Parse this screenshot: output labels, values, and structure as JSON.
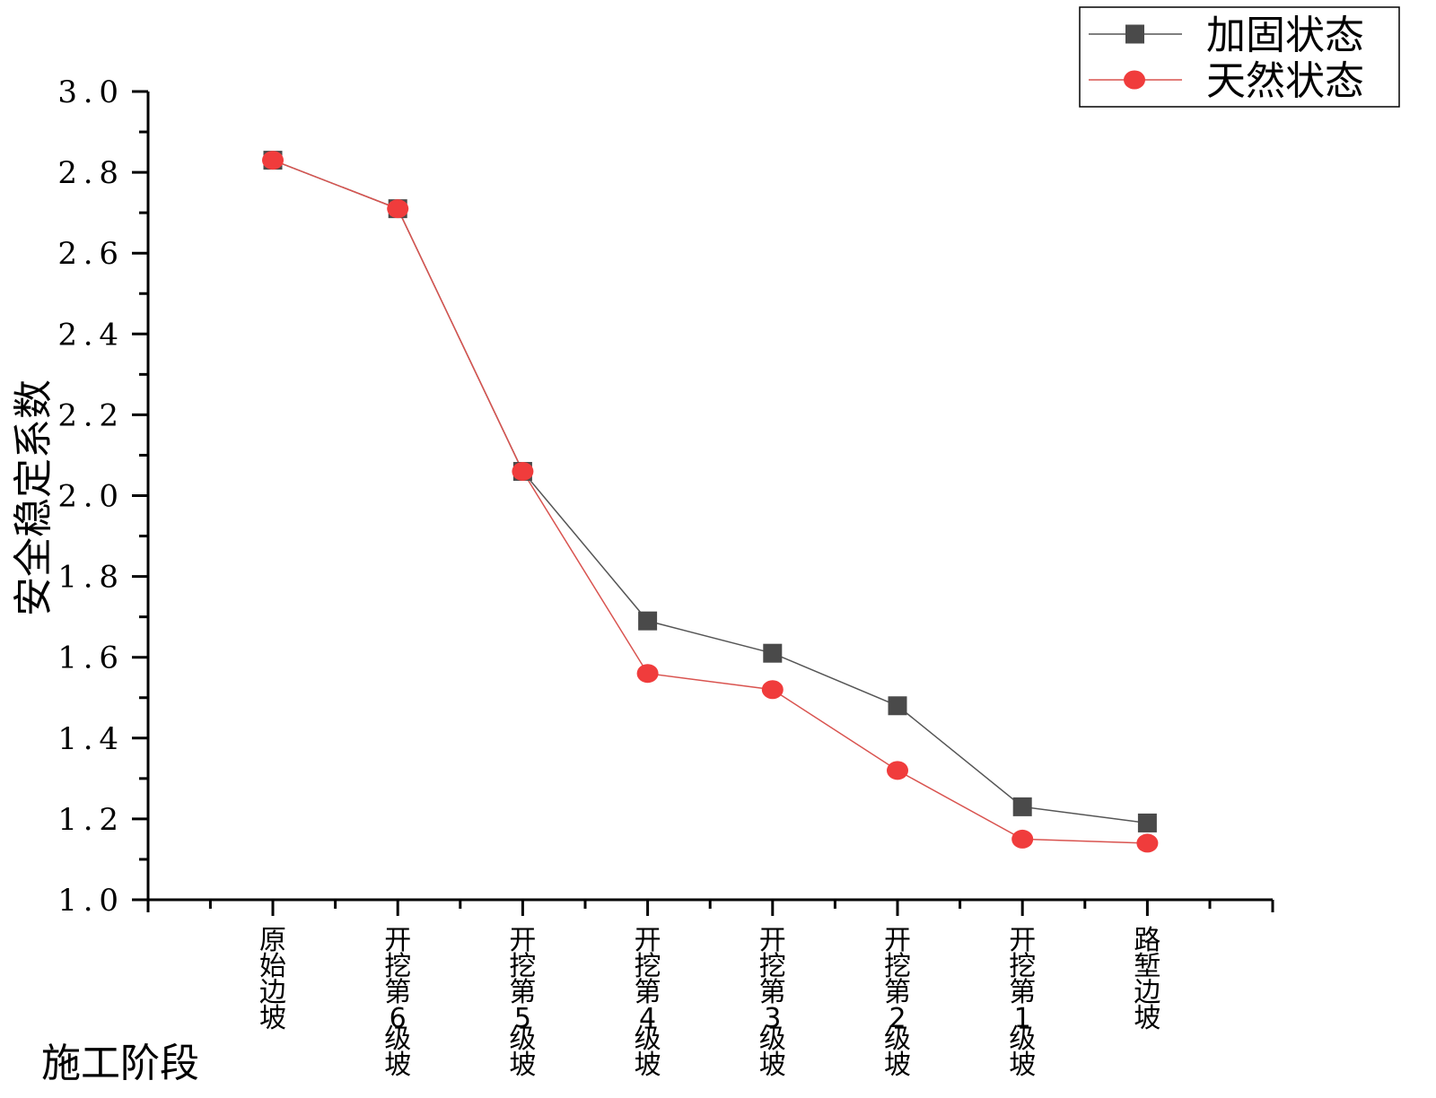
{
  "chart_data": {
    "type": "line",
    "xlabel": "施工阶段",
    "ylabel": "安全稳定系数",
    "ylim": [
      1.0,
      3.0
    ],
    "yticks": [
      "1.0",
      "1.2",
      "1.4",
      "1.6",
      "1.8",
      "2.0",
      "2.2",
      "2.4",
      "2.6",
      "2.8",
      "3.0"
    ],
    "categories": [
      "原始边坡",
      "开挖第6级坡",
      "开挖第5级坡",
      "开挖第4级坡",
      "开挖第3级坡",
      "开挖第2级坡",
      "开挖第1级坡",
      "路堑边坡"
    ],
    "series": [
      {
        "name": "加固状态",
        "marker": "square",
        "color": "#4a4a4a",
        "line_color": "#555555",
        "values": [
          2.83,
          2.71,
          2.06,
          1.69,
          1.61,
          1.48,
          1.23,
          1.19
        ]
      },
      {
        "name": "天然状态",
        "marker": "circle",
        "color": "#f03c3c",
        "line_color": "#d9534f",
        "values": [
          2.83,
          2.71,
          2.06,
          1.56,
          1.52,
          1.32,
          1.15,
          1.14
        ]
      }
    ],
    "legend_position": "top-right",
    "grid": false
  }
}
